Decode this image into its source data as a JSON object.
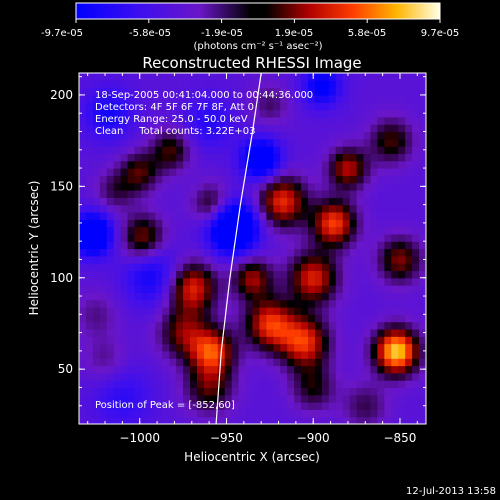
{
  "chart_data": {
    "type": "heatmap",
    "title": "Reconstructed RHESSI Image",
    "xlabel": "Heliocentric X (arcsec)",
    "ylabel": "Heliocentric Y (arcsec)",
    "xlim": [
      -1035,
      -835
    ],
    "ylim": [
      20,
      212
    ],
    "x_ticks": [
      -1000,
      -950,
      -900,
      -850
    ],
    "x_tick_labels": [
      "−1000",
      "−950",
      "−900",
      "−850"
    ],
    "y_ticks": [
      50,
      100,
      150,
      200
    ],
    "y_tick_labels": [
      "50",
      "100",
      "150",
      "200"
    ],
    "colorbar": {
      "tick_labels": [
        "-9.7e-05",
        "-5.8e-05",
        "-1.9e-05",
        "1.9e-05",
        "5.8e-05",
        "9.7e-05"
      ],
      "tick_values": [
        -9.7e-05,
        -5.8e-05,
        -1.9e-05,
        1.9e-05,
        5.8e-05,
        9.7e-05
      ],
      "range": [
        -9.7e-05,
        9.7e-05
      ],
      "label": "(photons cm⁻² s⁻¹ asec⁻²)"
    },
    "annotations": [
      "18-Sep-2005 00:41:04.000 to 00:44:36.000",
      "Detectors: 4F 5F 6F 7F 8F, Att 0",
      "Energy Range: 25.0 - 50.0 keV",
      "Clean     Total counts: 3.22E+03"
    ],
    "peak_label": "Position of Peak = [-852,60]",
    "peak": [
      -852,
      60
    ],
    "limb_curve": [
      [
        -956,
        20
      ],
      [
        -953,
        60
      ],
      [
        -948,
        100
      ],
      [
        -942,
        140
      ],
      [
        -935,
        180
      ],
      [
        -930,
        212
      ]
    ],
    "sources": [
      {
        "x": -1027,
        "y": 124,
        "amp": -1.0,
        "s": 8
      },
      {
        "x": -1018,
        "y": 190,
        "amp": -0.45,
        "s": 10
      },
      {
        "x": -998,
        "y": 122,
        "amp": 0.7,
        "s": 9
      },
      {
        "x": -1000,
        "y": 158,
        "amp": 0.55,
        "s": 8
      },
      {
        "x": -1014,
        "y": 148,
        "amp": 0.35,
        "s": 8
      },
      {
        "x": -982,
        "y": 170,
        "amp": 0.55,
        "s": 8
      },
      {
        "x": -992,
        "y": 102,
        "amp": -0.5,
        "s": 12
      },
      {
        "x": -1025,
        "y": 80,
        "amp": 0.25,
        "s": 9
      },
      {
        "x": -970,
        "y": 95,
        "amp": 0.9,
        "s": 10
      },
      {
        "x": -975,
        "y": 70,
        "amp": 0.6,
        "s": 10
      },
      {
        "x": -958,
        "y": 60,
        "amp": 0.9,
        "s": 9
      },
      {
        "x": -960,
        "y": 40,
        "amp": 0.55,
        "s": 10
      },
      {
        "x": -958,
        "y": 140,
        "amp": 0.55,
        "s": 8
      },
      {
        "x": -946,
        "y": 128,
        "amp": -1.2,
        "s": 10
      },
      {
        "x": -930,
        "y": 165,
        "amp": -0.9,
        "s": 8
      },
      {
        "x": -895,
        "y": 205,
        "amp": -0.6,
        "s": 8
      },
      {
        "x": -935,
        "y": 100,
        "amp": 0.7,
        "s": 8
      },
      {
        "x": -918,
        "y": 142,
        "amp": 0.9,
        "s": 10
      },
      {
        "x": -925,
        "y": 75,
        "amp": 0.9,
        "s": 10
      },
      {
        "x": -905,
        "y": 65,
        "amp": 0.9,
        "s": 10
      },
      {
        "x": -900,
        "y": 100,
        "amp": 0.85,
        "s": 10
      },
      {
        "x": -888,
        "y": 130,
        "amp": 0.95,
        "s": 9
      },
      {
        "x": -880,
        "y": 160,
        "amp": 0.75,
        "s": 8
      },
      {
        "x": -852,
        "y": 60,
        "amp": 1.3,
        "s": 9
      },
      {
        "x": -850,
        "y": 110,
        "amp": 0.65,
        "s": 9
      },
      {
        "x": -855,
        "y": 175,
        "amp": 0.55,
        "s": 9
      },
      {
        "x": -900,
        "y": 40,
        "amp": 0.45,
        "s": 9
      },
      {
        "x": -870,
        "y": 30,
        "amp": 0.35,
        "s": 9
      },
      {
        "x": -1010,
        "y": 35,
        "amp": -0.3,
        "s": 12
      },
      {
        "x": -1020,
        "y": 55,
        "amp": 0.25,
        "s": 9
      },
      {
        "x": -925,
        "y": 195,
        "amp": 0.3,
        "s": 8
      },
      {
        "x": -960,
        "y": 185,
        "amp": -0.35,
        "s": 10
      }
    ]
  },
  "footer": {
    "date": "12-Jul-2013 13:58"
  }
}
